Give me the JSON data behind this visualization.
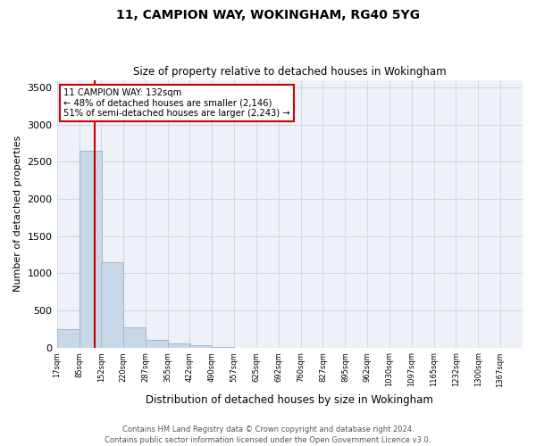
{
  "title1": "11, CAMPION WAY, WOKINGHAM, RG40 5YG",
  "title2": "Size of property relative to detached houses in Wokingham",
  "xlabel": "Distribution of detached houses by size in Wokingham",
  "ylabel": "Number of detached properties",
  "bins": [
    17,
    85,
    152,
    220,
    287,
    355,
    422,
    490,
    557,
    625,
    692,
    760,
    827,
    895,
    962,
    1030,
    1097,
    1165,
    1232,
    1300,
    1367
  ],
  "bar_heights": [
    250,
    2650,
    1150,
    270,
    100,
    50,
    25,
    5,
    0,
    0,
    0,
    0,
    0,
    0,
    0,
    0,
    0,
    0,
    0,
    0
  ],
  "bar_color": "#c8d8e8",
  "bar_edge_color": "#a0b8cc",
  "red_line_x": 132,
  "annotation_text": "11 CAMPION WAY: 132sqm\n← 48% of detached houses are smaller (2,146)\n51% of semi-detached houses are larger (2,243) →",
  "annotation_box_color": "#ffffff",
  "annotation_edge_color": "#cc0000",
  "annotation_text_color": "#000000",
  "red_line_color": "#cc0000",
  "ylim": [
    0,
    3600
  ],
  "yticks": [
    0,
    500,
    1000,
    1500,
    2000,
    2500,
    3000,
    3500
  ],
  "footer1": "Contains HM Land Registry data © Crown copyright and database right 2024.",
  "footer2": "Contains public sector information licensed under the Open Government Licence v3.0.",
  "grid_color": "#d0d8e8",
  "background_color": "#eef2f8",
  "fig_width": 6.0,
  "fig_height": 5.0,
  "fig_dpi": 100
}
